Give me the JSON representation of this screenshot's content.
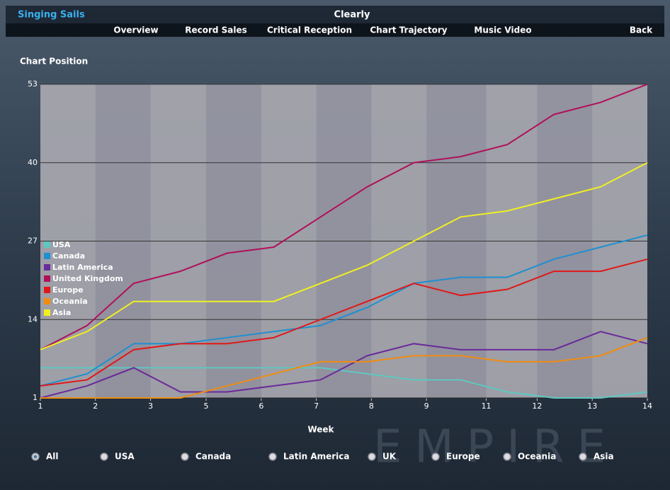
{
  "header": {
    "artist": "Singing Sails",
    "title": "Clearly"
  },
  "nav": [
    "Overview",
    "Record Sales",
    "Critical Reception",
    "Chart Trajectory",
    "Music Video",
    "Back"
  ],
  "chart_data": {
    "type": "line",
    "y_label": "Chart Position",
    "x_label": "Week",
    "x": [
      1,
      2,
      3,
      4,
      5,
      6,
      7,
      8,
      9,
      10,
      11,
      12,
      13,
      14
    ],
    "xlim": [
      1,
      14
    ],
    "xticks": [
      1,
      {
        "value": 2.18,
        "label": "2"
      },
      {
        "value": 3.36,
        "label": "3"
      },
      {
        "value": 4.55,
        "label": "5"
      },
      {
        "value": 5.73,
        "label": "6"
      },
      {
        "value": 6.91,
        "label": "7"
      },
      {
        "value": 8.09,
        "label": "8"
      },
      {
        "value": 9.27,
        "label": "9"
      },
      {
        "value": 10.55,
        "label": "11"
      },
      {
        "value": 11.64,
        "label": "12"
      },
      {
        "value": 12.82,
        "label": "13"
      },
      14
    ],
    "ylim": [
      1,
      53
    ],
    "yticks": [
      1,
      14,
      27,
      40,
      53
    ],
    "grid": true,
    "series": [
      {
        "name": "USA",
        "color": "#5ec8c0",
        "values": [
          6,
          6,
          6,
          6,
          6,
          6,
          6,
          5,
          4,
          4,
          2,
          1,
          1,
          2
        ]
      },
      {
        "name": "Canada",
        "color": "#1e90d0",
        "values": [
          3,
          5,
          10,
          10,
          11,
          12,
          13,
          16,
          20,
          21,
          21,
          24,
          26,
          28
        ]
      },
      {
        "name": "Latin America",
        "color": "#6a2a9a",
        "values": [
          1,
          3,
          6,
          2,
          2,
          3,
          4,
          8,
          10,
          9,
          9,
          9,
          12,
          10
        ]
      },
      {
        "name": "United Kingdom",
        "color": "#b0105a",
        "values": [
          9,
          13,
          20,
          22,
          25,
          26,
          31,
          36,
          40,
          41,
          43,
          48,
          50,
          53
        ]
      },
      {
        "name": "Europe",
        "color": "#e01818",
        "values": [
          3,
          4,
          9,
          10,
          10,
          11,
          14,
          17,
          20,
          18,
          19,
          22,
          22,
          24
        ]
      },
      {
        "name": "Oceania",
        "color": "#f08c10",
        "values": [
          1,
          1,
          1,
          1,
          3,
          5,
          7,
          7,
          8,
          8,
          7,
          7,
          8,
          11
        ]
      },
      {
        "name": "Asia",
        "color": "#f0f020",
        "values": [
          9,
          12,
          17,
          17,
          17,
          17,
          20,
          23,
          27,
          31,
          32,
          34,
          36,
          40
        ]
      }
    ]
  },
  "filters": [
    "All",
    "USA",
    "Canada",
    "Latin America",
    "UK",
    "Europe",
    "Oceania",
    "Asia"
  ],
  "selected_filter": "All",
  "logo": "EMPIRE"
}
